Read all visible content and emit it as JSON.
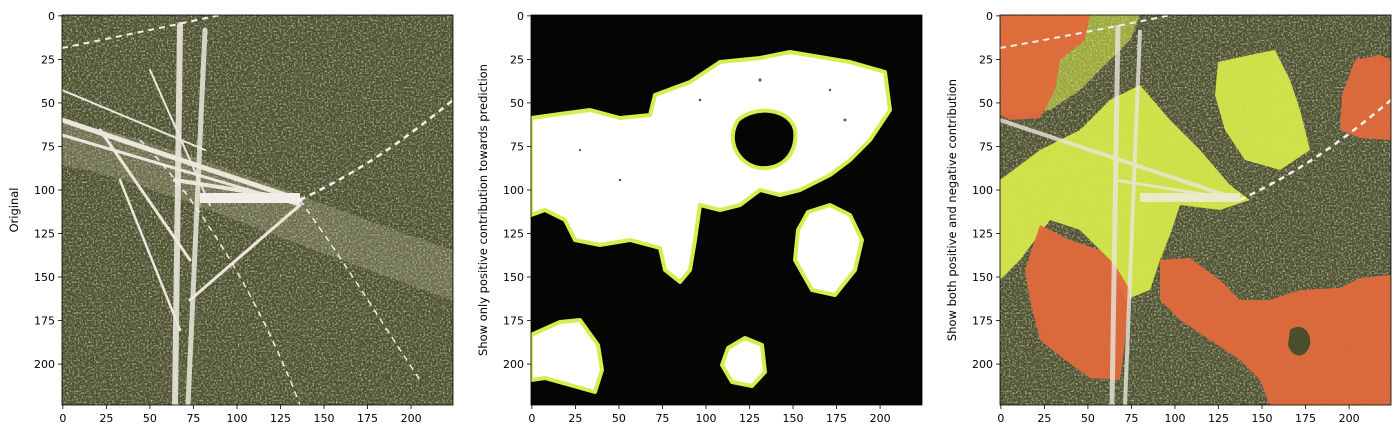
{
  "panels": [
    {
      "id": "original",
      "ylabel": "Original",
      "xticks": [
        "0",
        "25",
        "50",
        "75",
        "100",
        "125",
        "150",
        "175",
        "200"
      ],
      "yticks": [
        "0",
        "25",
        "50",
        "75",
        "100",
        "125",
        "150",
        "175",
        "200"
      ],
      "image": "aerial-photo-power-tower-over-forest"
    },
    {
      "id": "positive-mask",
      "ylabel": "Show only positive contribution towards prediction",
      "xticks": [
        "0",
        "25",
        "50",
        "75",
        "100",
        "125",
        "150",
        "175",
        "200"
      ],
      "yticks": [
        "0",
        "25",
        "50",
        "75",
        "100",
        "125",
        "150",
        "175",
        "200"
      ],
      "image": "binary-mask-white-on-black-with-yellow-boundary"
    },
    {
      "id": "pos-neg-overlay",
      "ylabel": "Show both positive and negative contribution",
      "xticks": [
        "0",
        "25",
        "50",
        "75",
        "100",
        "125",
        "150",
        "175",
        "200"
      ],
      "yticks": [
        "0",
        "25",
        "50",
        "75",
        "100",
        "125",
        "150",
        "175",
        "200"
      ],
      "image": "photo-with-green-positive-and-red-negative-superpixels"
    }
  ],
  "colors": {
    "forest": "#4a4d2c",
    "forest_light": "#8a8c66",
    "positive": "#d8ec4c",
    "negative": "#e06a3c",
    "mask_bg": "#030603",
    "mask_fg": "#ffffff"
  }
}
